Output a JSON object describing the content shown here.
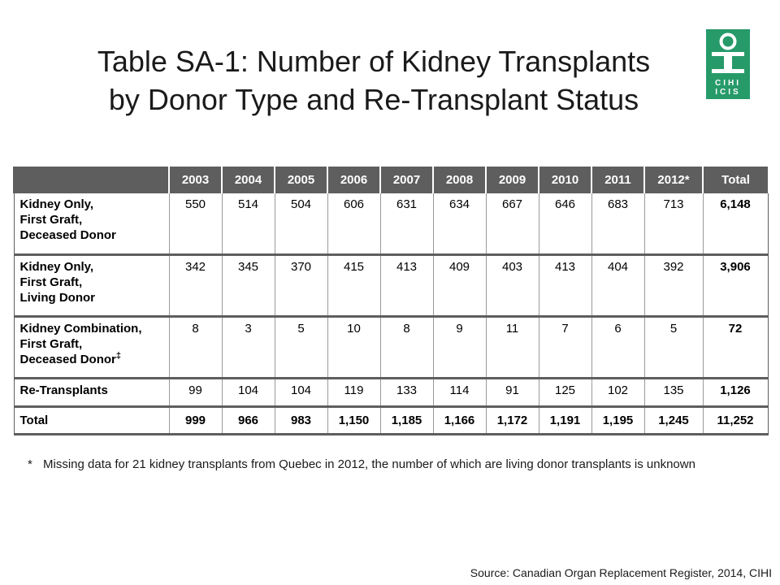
{
  "title": {
    "line1": "Table SA-1: Number of Kidney Transplants",
    "line2": "by Donor Type and Re-Transplant Status"
  },
  "logo": {
    "icon": "cihi-logo-icon",
    "wordmark_line1": "CIHI",
    "wordmark_line2": "ICIS",
    "color": "#279a6a"
  },
  "table": {
    "header_color": "#5e5e5e",
    "columns": [
      "",
      "2003",
      "2004",
      "2005",
      "2006",
      "2007",
      "2008",
      "2009",
      "2010",
      "2011",
      "2012*",
      "Total"
    ],
    "rows": [
      {
        "label_lines": [
          "Kidney Only,",
          "First Graft,",
          "Deceased Donor"
        ],
        "label_sup": "",
        "values": [
          "550",
          "514",
          "504",
          "606",
          "631",
          "634",
          "667",
          "646",
          "683",
          "713"
        ],
        "total": "6,148"
      },
      {
        "label_lines": [
          "Kidney Only,",
          "First Graft,",
          "Living Donor"
        ],
        "label_sup": "",
        "values": [
          "342",
          "345",
          "370",
          "415",
          "413",
          "409",
          "403",
          "413",
          "404",
          "392"
        ],
        "total": "3,906"
      },
      {
        "label_lines": [
          "Kidney Combination,",
          "First Graft,",
          "Deceased Donor"
        ],
        "label_sup": "‡",
        "values": [
          "8",
          "3",
          "5",
          "10",
          "8",
          "9",
          "11",
          "7",
          "6",
          "5"
        ],
        "total": "72"
      },
      {
        "label_lines": [
          "Re-Transplants"
        ],
        "label_sup": "",
        "values": [
          "99",
          "104",
          "104",
          "119",
          "133",
          "114",
          "91",
          "125",
          "102",
          "135"
        ],
        "total": "1,126"
      }
    ],
    "total_row": {
      "label": "Total",
      "values": [
        "999",
        "966",
        "983",
        "1,150",
        "1,185",
        "1,166",
        "1,172",
        "1,191",
        "1,195",
        "1,245"
      ],
      "total": "11,252"
    }
  },
  "footnote": {
    "mark": "*",
    "text": "Missing data for 21 kidney transplants from Quebec in 2012, the number of which are living donor transplants is unknown"
  },
  "source": "Source: Canadian Organ Replacement Register, 2014, CIHI"
}
